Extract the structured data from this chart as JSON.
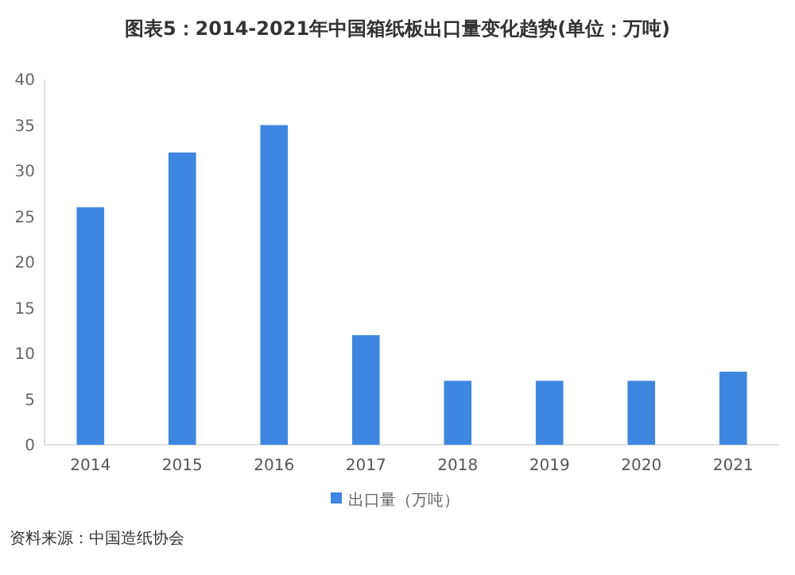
{
  "chart_data": {
    "type": "bar",
    "title": "图表5：2014-2021年中国箱纸板出口量变化趋势(单位：万吨)",
    "categories": [
      "2014",
      "2015",
      "2016",
      "2017",
      "2018",
      "2019",
      "2020",
      "2021"
    ],
    "series": [
      {
        "name": "出口量（万吨）",
        "color": "#3f86e0",
        "values": [
          26,
          32,
          35,
          12,
          7,
          7,
          7,
          8
        ]
      }
    ],
    "ylim": [
      0,
      40
    ],
    "yticks": [
      0,
      5,
      10,
      15,
      20,
      25,
      30,
      35,
      40
    ],
    "grid": false,
    "legend": "bottom",
    "annotations": [
      "资料来源：中国造纸协会"
    ]
  }
}
